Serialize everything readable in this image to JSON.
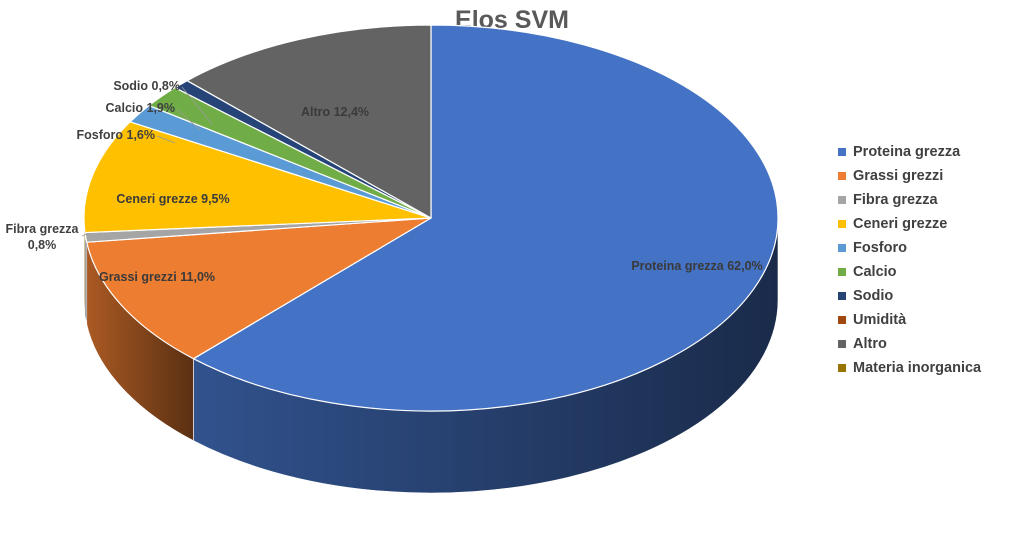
{
  "chart_data": {
    "type": "pie",
    "style": "3d",
    "title": "Elos SVM",
    "legend_position": "right",
    "slices": [
      {
        "name": "Proteina grezza",
        "value": 62.0,
        "label": "Proteina grezza 62,0%",
        "color": "#4472C4"
      },
      {
        "name": "Grassi grezzi",
        "value": 11.0,
        "label": "Grassi grezzi 11,0%",
        "color": "#ED7D31"
      },
      {
        "name": "Fibra grezza",
        "value": 0.8,
        "label": "Fibra grezza\n0,8%",
        "color": "#A5A5A5"
      },
      {
        "name": "Ceneri grezze",
        "value": 9.5,
        "label": "Ceneri grezze 9,5%",
        "color": "#FFC000"
      },
      {
        "name": "Fosforo",
        "value": 1.6,
        "label": "Fosforo 1,6%",
        "color": "#5B9BD5"
      },
      {
        "name": "Calcio",
        "value": 1.9,
        "label": "Calcio 1,9%",
        "color": "#70AD47"
      },
      {
        "name": "Sodio",
        "value": 0.8,
        "label": "Sodio 0,8%",
        "color": "#264478"
      },
      {
        "name": "Umidità",
        "value": 0,
        "label": "",
        "color": "#9E480E"
      },
      {
        "name": "Altro",
        "value": 12.4,
        "label": "Altro 12,4%",
        "color": "#636363"
      },
      {
        "name": "Materia inorganica",
        "value": 0,
        "label": "",
        "color": "#997300"
      }
    ]
  }
}
